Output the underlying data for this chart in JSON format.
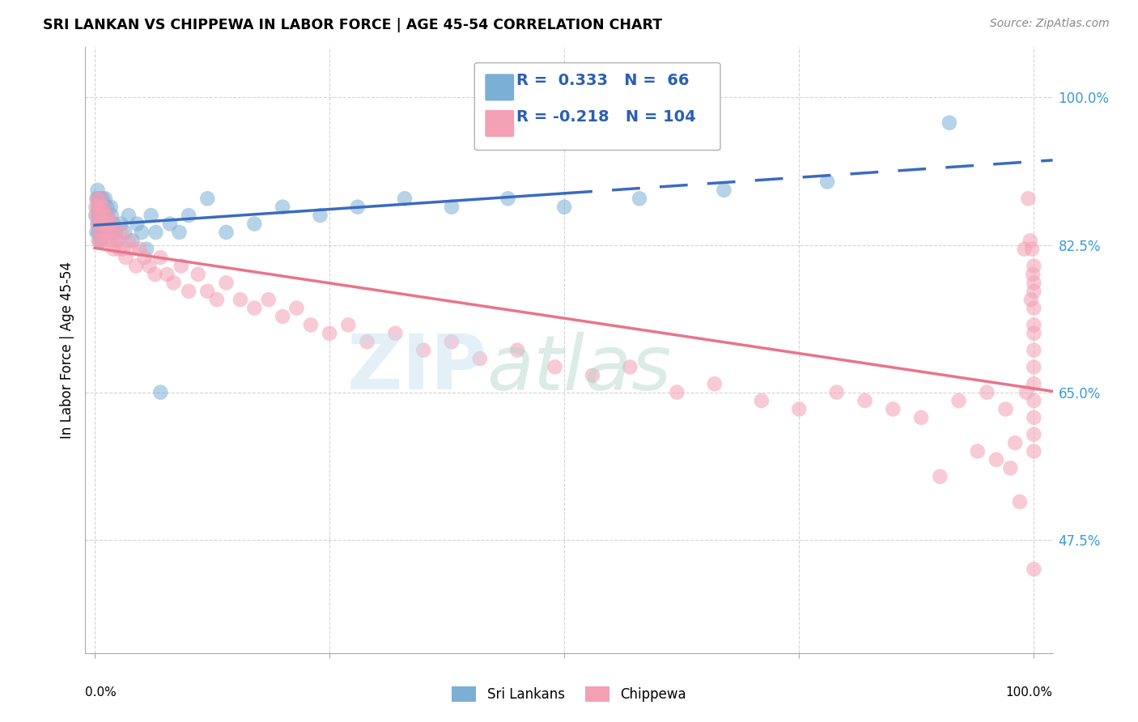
{
  "title": "SRI LANKAN VS CHIPPEWA IN LABOR FORCE | AGE 45-54 CORRELATION CHART",
  "source": "Source: ZipAtlas.com",
  "ylabel": "In Labor Force | Age 45-54",
  "yticks": [
    0.475,
    0.65,
    0.825,
    1.0
  ],
  "ytick_labels": [
    "47.5%",
    "65.0%",
    "82.5%",
    "100.0%"
  ],
  "blue_R": 0.333,
  "blue_N": 66,
  "pink_R": -0.218,
  "pink_N": 104,
  "blue_color": "#7bafd4",
  "pink_color": "#f4a0b5",
  "blue_line_color": "#3a6bbf",
  "pink_line_color": "#e8748a",
  "legend_blue_label": "Sri Lankans",
  "legend_pink_label": "Chippewa",
  "blue_scatter_x": [
    0.001,
    0.002,
    0.002,
    0.003,
    0.003,
    0.003,
    0.004,
    0.004,
    0.004,
    0.005,
    0.005,
    0.005,
    0.005,
    0.006,
    0.006,
    0.006,
    0.007,
    0.007,
    0.007,
    0.008,
    0.008,
    0.008,
    0.009,
    0.009,
    0.01,
    0.01,
    0.011,
    0.011,
    0.012,
    0.012,
    0.013,
    0.014,
    0.015,
    0.016,
    0.017,
    0.018,
    0.02,
    0.022,
    0.025,
    0.028,
    0.032,
    0.036,
    0.04,
    0.045,
    0.05,
    0.055,
    0.06,
    0.065,
    0.07,
    0.08,
    0.09,
    0.1,
    0.12,
    0.14,
    0.17,
    0.2,
    0.24,
    0.28,
    0.33,
    0.38,
    0.44,
    0.5,
    0.58,
    0.67,
    0.78,
    0.91
  ],
  "blue_scatter_y": [
    0.86,
    0.88,
    0.84,
    0.87,
    0.85,
    0.89,
    0.86,
    0.84,
    0.88,
    0.87,
    0.85,
    0.83,
    0.86,
    0.88,
    0.84,
    0.86,
    0.85,
    0.87,
    0.83,
    0.86,
    0.88,
    0.84,
    0.85,
    0.87,
    0.86,
    0.84,
    0.88,
    0.85,
    0.86,
    0.84,
    0.87,
    0.86,
    0.85,
    0.84,
    0.87,
    0.86,
    0.85,
    0.84,
    0.83,
    0.85,
    0.84,
    0.86,
    0.83,
    0.85,
    0.84,
    0.82,
    0.86,
    0.84,
    0.65,
    0.85,
    0.84,
    0.86,
    0.88,
    0.84,
    0.85,
    0.87,
    0.86,
    0.87,
    0.88,
    0.87,
    0.88,
    0.87,
    0.88,
    0.89,
    0.9,
    0.97
  ],
  "pink_scatter_x": [
    0.001,
    0.002,
    0.003,
    0.003,
    0.004,
    0.004,
    0.005,
    0.005,
    0.006,
    0.006,
    0.007,
    0.007,
    0.008,
    0.008,
    0.009,
    0.01,
    0.01,
    0.011,
    0.012,
    0.013,
    0.014,
    0.015,
    0.016,
    0.017,
    0.018,
    0.019,
    0.02,
    0.022,
    0.024,
    0.026,
    0.028,
    0.03,
    0.033,
    0.036,
    0.04,
    0.044,
    0.048,
    0.053,
    0.058,
    0.064,
    0.07,
    0.077,
    0.084,
    0.092,
    0.1,
    0.11,
    0.12,
    0.13,
    0.14,
    0.155,
    0.17,
    0.185,
    0.2,
    0.215,
    0.23,
    0.25,
    0.27,
    0.29,
    0.32,
    0.35,
    0.38,
    0.41,
    0.45,
    0.49,
    0.53,
    0.57,
    0.62,
    0.66,
    0.71,
    0.75,
    0.79,
    0.82,
    0.85,
    0.88,
    0.9,
    0.92,
    0.94,
    0.95,
    0.96,
    0.97,
    0.975,
    0.98,
    0.985,
    0.99,
    0.992,
    0.994,
    0.996,
    0.997,
    0.998,
    0.999,
    1.0,
    1.0,
    1.0,
    1.0,
    1.0,
    1.0,
    1.0,
    1.0,
    1.0,
    1.0,
    1.0,
    1.0,
    1.0,
    1.0
  ],
  "pink_scatter_y": [
    0.87,
    0.86,
    0.88,
    0.85,
    0.87,
    0.83,
    0.86,
    0.84,
    0.88,
    0.85,
    0.87,
    0.83,
    0.86,
    0.84,
    0.87,
    0.85,
    0.83,
    0.86,
    0.85,
    0.84,
    0.86,
    0.83,
    0.85,
    0.84,
    0.83,
    0.85,
    0.82,
    0.84,
    0.83,
    0.82,
    0.84,
    0.82,
    0.81,
    0.83,
    0.82,
    0.8,
    0.82,
    0.81,
    0.8,
    0.79,
    0.81,
    0.79,
    0.78,
    0.8,
    0.77,
    0.79,
    0.77,
    0.76,
    0.78,
    0.76,
    0.75,
    0.76,
    0.74,
    0.75,
    0.73,
    0.72,
    0.73,
    0.71,
    0.72,
    0.7,
    0.71,
    0.69,
    0.7,
    0.68,
    0.67,
    0.68,
    0.65,
    0.66,
    0.64,
    0.63,
    0.65,
    0.64,
    0.63,
    0.62,
    0.55,
    0.64,
    0.58,
    0.65,
    0.57,
    0.63,
    0.56,
    0.59,
    0.52,
    0.82,
    0.65,
    0.88,
    0.83,
    0.76,
    0.82,
    0.79,
    0.8,
    0.78,
    0.77,
    0.75,
    0.73,
    0.72,
    0.7,
    0.68,
    0.66,
    0.64,
    0.62,
    0.6,
    0.58,
    0.44
  ]
}
